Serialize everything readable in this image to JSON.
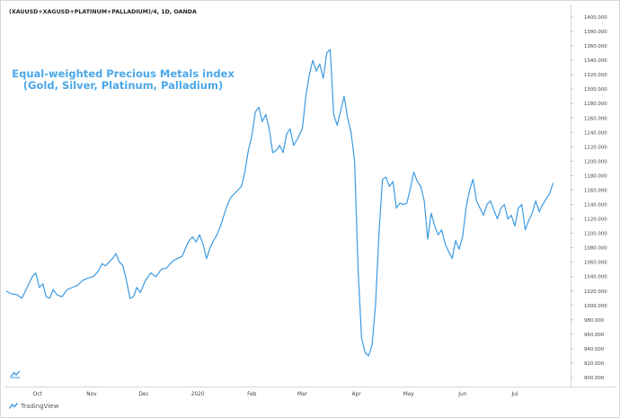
{
  "header": {
    "symbol": "(XAUUSD+XAGUSD+PLATINUM+PALLADIUM)/4, 1D, OANDA"
  },
  "annotation": {
    "line1": "Equal-weighted Precious Metals index",
    "line2": "(Gold, Silver, Platinum, Palladium)"
  },
  "footer": {
    "brand": "TradingView",
    "brand_icon": "tradingview-logo-icon"
  },
  "colors": {
    "series": "#3d9ae0",
    "annotation": "#4aa8e8",
    "axis_text": "#444444"
  },
  "chart_data": {
    "type": "line",
    "title": "",
    "xlabel": "",
    "ylabel": "",
    "ylim": [
      890,
      1400
    ],
    "grid": false,
    "legend": "none",
    "y_ticks": [
      "900.000",
      "920.000",
      "940.000",
      "960.000",
      "980.000",
      "1000.000",
      "1020.000",
      "1040.000",
      "1060.000",
      "1080.000",
      "1100.000",
      "1120.000",
      "1140.000",
      "1160.000",
      "1180.000",
      "1200.000",
      "1220.000",
      "1240.000",
      "1260.000",
      "1280.000",
      "1300.000",
      "1320.000",
      "1340.000",
      "1360.000",
      "1380.000",
      "1400.000"
    ],
    "x_ticks": [
      {
        "label": "Oct",
        "date": "2019-10-01"
      },
      {
        "label": "Nov",
        "date": "2019-11-01"
      },
      {
        "label": "Dec",
        "date": "2019-12-01"
      },
      {
        "label": "2020",
        "date": "2020-01-01"
      },
      {
        "label": "Feb",
        "date": "2020-02-01"
      },
      {
        "label": "Mar",
        "date": "2020-03-01"
      },
      {
        "label": "Apr",
        "date": "2020-04-01"
      },
      {
        "label": "May",
        "date": "2020-05-01"
      },
      {
        "label": "Jun",
        "date": "2020-06-01"
      },
      {
        "label": "Jul",
        "date": "2020-07-01"
      }
    ],
    "series": [
      {
        "points": [
          [
            "2019-09-13",
            1020
          ],
          [
            "2019-09-16",
            1016
          ],
          [
            "2019-09-19",
            1015
          ],
          [
            "2019-09-22",
            1010
          ],
          [
            "2019-09-25",
            1025
          ],
          [
            "2019-09-28",
            1040
          ],
          [
            "2019-09-30",
            1045
          ],
          [
            "2019-10-02",
            1025
          ],
          [
            "2019-10-04",
            1030
          ],
          [
            "2019-10-06",
            1012
          ],
          [
            "2019-10-08",
            1010
          ],
          [
            "2019-10-10",
            1022
          ],
          [
            "2019-10-12",
            1015
          ],
          [
            "2019-10-15",
            1012
          ],
          [
            "2019-10-18",
            1022
          ],
          [
            "2019-10-21",
            1025
          ],
          [
            "2019-10-24",
            1028
          ],
          [
            "2019-10-27",
            1035
          ],
          [
            "2019-10-30",
            1038
          ],
          [
            "2019-11-02",
            1040
          ],
          [
            "2019-11-05",
            1048
          ],
          [
            "2019-11-07",
            1058
          ],
          [
            "2019-11-09",
            1055
          ],
          [
            "2019-11-11",
            1060
          ],
          [
            "2019-11-13",
            1065
          ],
          [
            "2019-11-15",
            1072
          ],
          [
            "2019-11-17",
            1060
          ],
          [
            "2019-11-19",
            1055
          ],
          [
            "2019-11-21",
            1035
          ],
          [
            "2019-11-23",
            1010
          ],
          [
            "2019-11-25",
            1012
          ],
          [
            "2019-11-27",
            1025
          ],
          [
            "2019-11-29",
            1018
          ],
          [
            "2019-12-02",
            1035
          ],
          [
            "2019-12-05",
            1045
          ],
          [
            "2019-12-08",
            1040
          ],
          [
            "2019-12-11",
            1050
          ],
          [
            "2019-12-14",
            1052
          ],
          [
            "2019-12-17",
            1060
          ],
          [
            "2019-12-20",
            1065
          ],
          [
            "2019-12-23",
            1068
          ],
          [
            "2019-12-25",
            1080
          ],
          [
            "2019-12-27",
            1090
          ],
          [
            "2019-12-29",
            1095
          ],
          [
            "2019-12-31",
            1088
          ],
          [
            "2020-01-02",
            1098
          ],
          [
            "2020-01-04",
            1085
          ],
          [
            "2020-01-06",
            1065
          ],
          [
            "2020-01-08",
            1080
          ],
          [
            "2020-01-10",
            1090
          ],
          [
            "2020-01-12",
            1098
          ],
          [
            "2020-01-14",
            1110
          ],
          [
            "2020-01-16",
            1125
          ],
          [
            "2020-01-18",
            1140
          ],
          [
            "2020-01-20",
            1150
          ],
          [
            "2020-01-22",
            1155
          ],
          [
            "2020-01-24",
            1160
          ],
          [
            "2020-01-26",
            1165
          ],
          [
            "2020-01-28",
            1185
          ],
          [
            "2020-01-30",
            1215
          ],
          [
            "2020-02-01",
            1235
          ],
          [
            "2020-02-03",
            1268
          ],
          [
            "2020-02-05",
            1275
          ],
          [
            "2020-02-07",
            1255
          ],
          [
            "2020-02-09",
            1265
          ],
          [
            "2020-02-11",
            1245
          ],
          [
            "2020-02-13",
            1212
          ],
          [
            "2020-02-15",
            1215
          ],
          [
            "2020-02-17",
            1222
          ],
          [
            "2020-02-19",
            1212
          ],
          [
            "2020-02-21",
            1238
          ],
          [
            "2020-02-23",
            1245
          ],
          [
            "2020-02-25",
            1222
          ],
          [
            "2020-02-27",
            1230
          ],
          [
            "2020-03-01",
            1245
          ],
          [
            "2020-03-03",
            1290
          ],
          [
            "2020-03-05",
            1320
          ],
          [
            "2020-03-07",
            1340
          ],
          [
            "2020-03-09",
            1325
          ],
          [
            "2020-03-11",
            1335
          ],
          [
            "2020-03-13",
            1315
          ],
          [
            "2020-03-15",
            1350
          ],
          [
            "2020-03-17",
            1355
          ],
          [
            "2020-03-19",
            1265
          ],
          [
            "2020-03-21",
            1250
          ],
          [
            "2020-03-23",
            1270
          ],
          [
            "2020-03-25",
            1290
          ],
          [
            "2020-03-27",
            1260
          ],
          [
            "2020-03-29",
            1240
          ],
          [
            "2020-03-31",
            1200
          ],
          [
            "2020-04-02",
            1050
          ],
          [
            "2020-04-04",
            955
          ],
          [
            "2020-04-06",
            935
          ],
          [
            "2020-04-08",
            930
          ],
          [
            "2020-04-10",
            945
          ],
          [
            "2020-04-12",
            1000
          ],
          [
            "2020-04-14",
            1100
          ],
          [
            "2020-04-16",
            1175
          ],
          [
            "2020-04-18",
            1178
          ],
          [
            "2020-04-20",
            1165
          ],
          [
            "2020-04-22",
            1172
          ],
          [
            "2020-04-24",
            1135
          ],
          [
            "2020-04-26",
            1142
          ],
          [
            "2020-04-28",
            1140
          ],
          [
            "2020-04-30",
            1142
          ],
          [
            "2020-05-02",
            1162
          ],
          [
            "2020-05-04",
            1185
          ],
          [
            "2020-05-06",
            1172
          ],
          [
            "2020-05-08",
            1165
          ],
          [
            "2020-05-10",
            1145
          ],
          [
            "2020-05-12",
            1092
          ],
          [
            "2020-05-14",
            1128
          ],
          [
            "2020-05-16",
            1110
          ],
          [
            "2020-05-18",
            1098
          ],
          [
            "2020-05-20",
            1105
          ],
          [
            "2020-05-22",
            1085
          ],
          [
            "2020-05-24",
            1075
          ],
          [
            "2020-05-26",
            1065
          ],
          [
            "2020-05-28",
            1090
          ],
          [
            "2020-05-30",
            1078
          ],
          [
            "2020-06-01",
            1095
          ],
          [
            "2020-06-03",
            1135
          ],
          [
            "2020-06-05",
            1160
          ],
          [
            "2020-06-07",
            1175
          ],
          [
            "2020-06-09",
            1145
          ],
          [
            "2020-06-11",
            1135
          ],
          [
            "2020-06-13",
            1125
          ],
          [
            "2020-06-15",
            1140
          ],
          [
            "2020-06-17",
            1145
          ],
          [
            "2020-06-19",
            1132
          ],
          [
            "2020-06-21",
            1120
          ],
          [
            "2020-06-23",
            1135
          ],
          [
            "2020-06-25",
            1140
          ],
          [
            "2020-06-27",
            1120
          ],
          [
            "2020-06-29",
            1125
          ],
          [
            "2020-07-01",
            1110
          ],
          [
            "2020-07-03",
            1135
          ],
          [
            "2020-07-05",
            1140
          ],
          [
            "2020-07-07",
            1105
          ],
          [
            "2020-07-09",
            1118
          ],
          [
            "2020-07-11",
            1128
          ],
          [
            "2020-07-13",
            1145
          ],
          [
            "2020-07-15",
            1130
          ],
          [
            "2020-07-17",
            1140
          ],
          [
            "2020-07-19",
            1148
          ],
          [
            "2020-07-21",
            1155
          ],
          [
            "2020-07-23",
            1170
          ]
        ]
      }
    ]
  }
}
